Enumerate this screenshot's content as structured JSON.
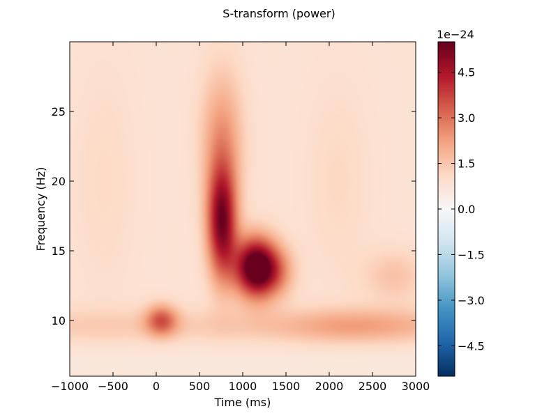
{
  "chart_data": {
    "type": "heatmap",
    "title": "S-transform (power)",
    "xlabel": "Time (ms)",
    "ylabel": "Frequency (Hz)",
    "xlim": [
      -1000,
      3000
    ],
    "ylim": [
      6,
      30
    ],
    "x_ticks": [
      -1000,
      -500,
      0,
      500,
      1000,
      1500,
      2000,
      2500,
      3000
    ],
    "x_tick_labels": [
      "−1000",
      "−500",
      "0",
      "500",
      "1000",
      "1500",
      "2000",
      "2500",
      "3000"
    ],
    "y_ticks": [
      10,
      15,
      20,
      25
    ],
    "y_tick_labels": [
      "10",
      "15",
      "20",
      "25"
    ],
    "colormap": "RdBu_r",
    "colorbar": {
      "range": [
        -5.5,
        5.5
      ],
      "exponent_label": "1e−24",
      "ticks": [
        -4.5,
        -3.0,
        -1.5,
        0.0,
        1.5,
        3.0,
        4.5
      ],
      "tick_labels": [
        "−4.5",
        "−3.0",
        "−1.5",
        "0.0",
        "1.5",
        "3.0",
        "4.5"
      ]
    },
    "background_level": 0.8,
    "blobs": [
      {
        "label": "peak",
        "t": 1150,
        "f": 13.8,
        "sigma_t": 170,
        "sigma_f": 1.5,
        "amp": 5.5
      },
      {
        "label": "ridge",
        "t": 760,
        "f": 17.0,
        "sigma_t": 120,
        "sigma_f": 2.8,
        "amp": 4.3
      },
      {
        "label": "upper-plume",
        "t": 760,
        "f": 23.0,
        "sigma_t": 170,
        "sigma_f": 3.5,
        "amp": 1.6
      },
      {
        "label": "post-peak",
        "t": 1400,
        "f": 13.5,
        "sigma_t": 150,
        "sigma_f": 1.3,
        "amp": 1.4
      },
      {
        "label": "alpha",
        "t": 60,
        "f": 10.0,
        "sigma_t": 130,
        "sigma_f": 0.8,
        "amp": 2.3
      },
      {
        "label": "late-band",
        "t": 2300,
        "f": 9.6,
        "sigma_t": 600,
        "sigma_f": 0.9,
        "amp": 0.9
      },
      {
        "label": "late-beta",
        "t": 2750,
        "f": 13.2,
        "sigma_t": 250,
        "sigma_f": 1.3,
        "amp": 0.8
      },
      {
        "label": "late-column",
        "t": 2100,
        "f": 20.0,
        "sigma_t": 250,
        "sigma_f": 5.0,
        "amp": 0.35
      },
      {
        "label": "early-column",
        "t": -600,
        "f": 20.0,
        "sigma_t": 250,
        "sigma_f": 6.0,
        "amp": 0.3
      }
    ],
    "bands": [
      {
        "label": "alpha-band",
        "f": 9.6,
        "sigma_f": 0.9,
        "amp": 0.6
      },
      {
        "label": "low-edge",
        "f": 7.0,
        "sigma_f": 1.0,
        "amp": -0.2
      }
    ]
  }
}
